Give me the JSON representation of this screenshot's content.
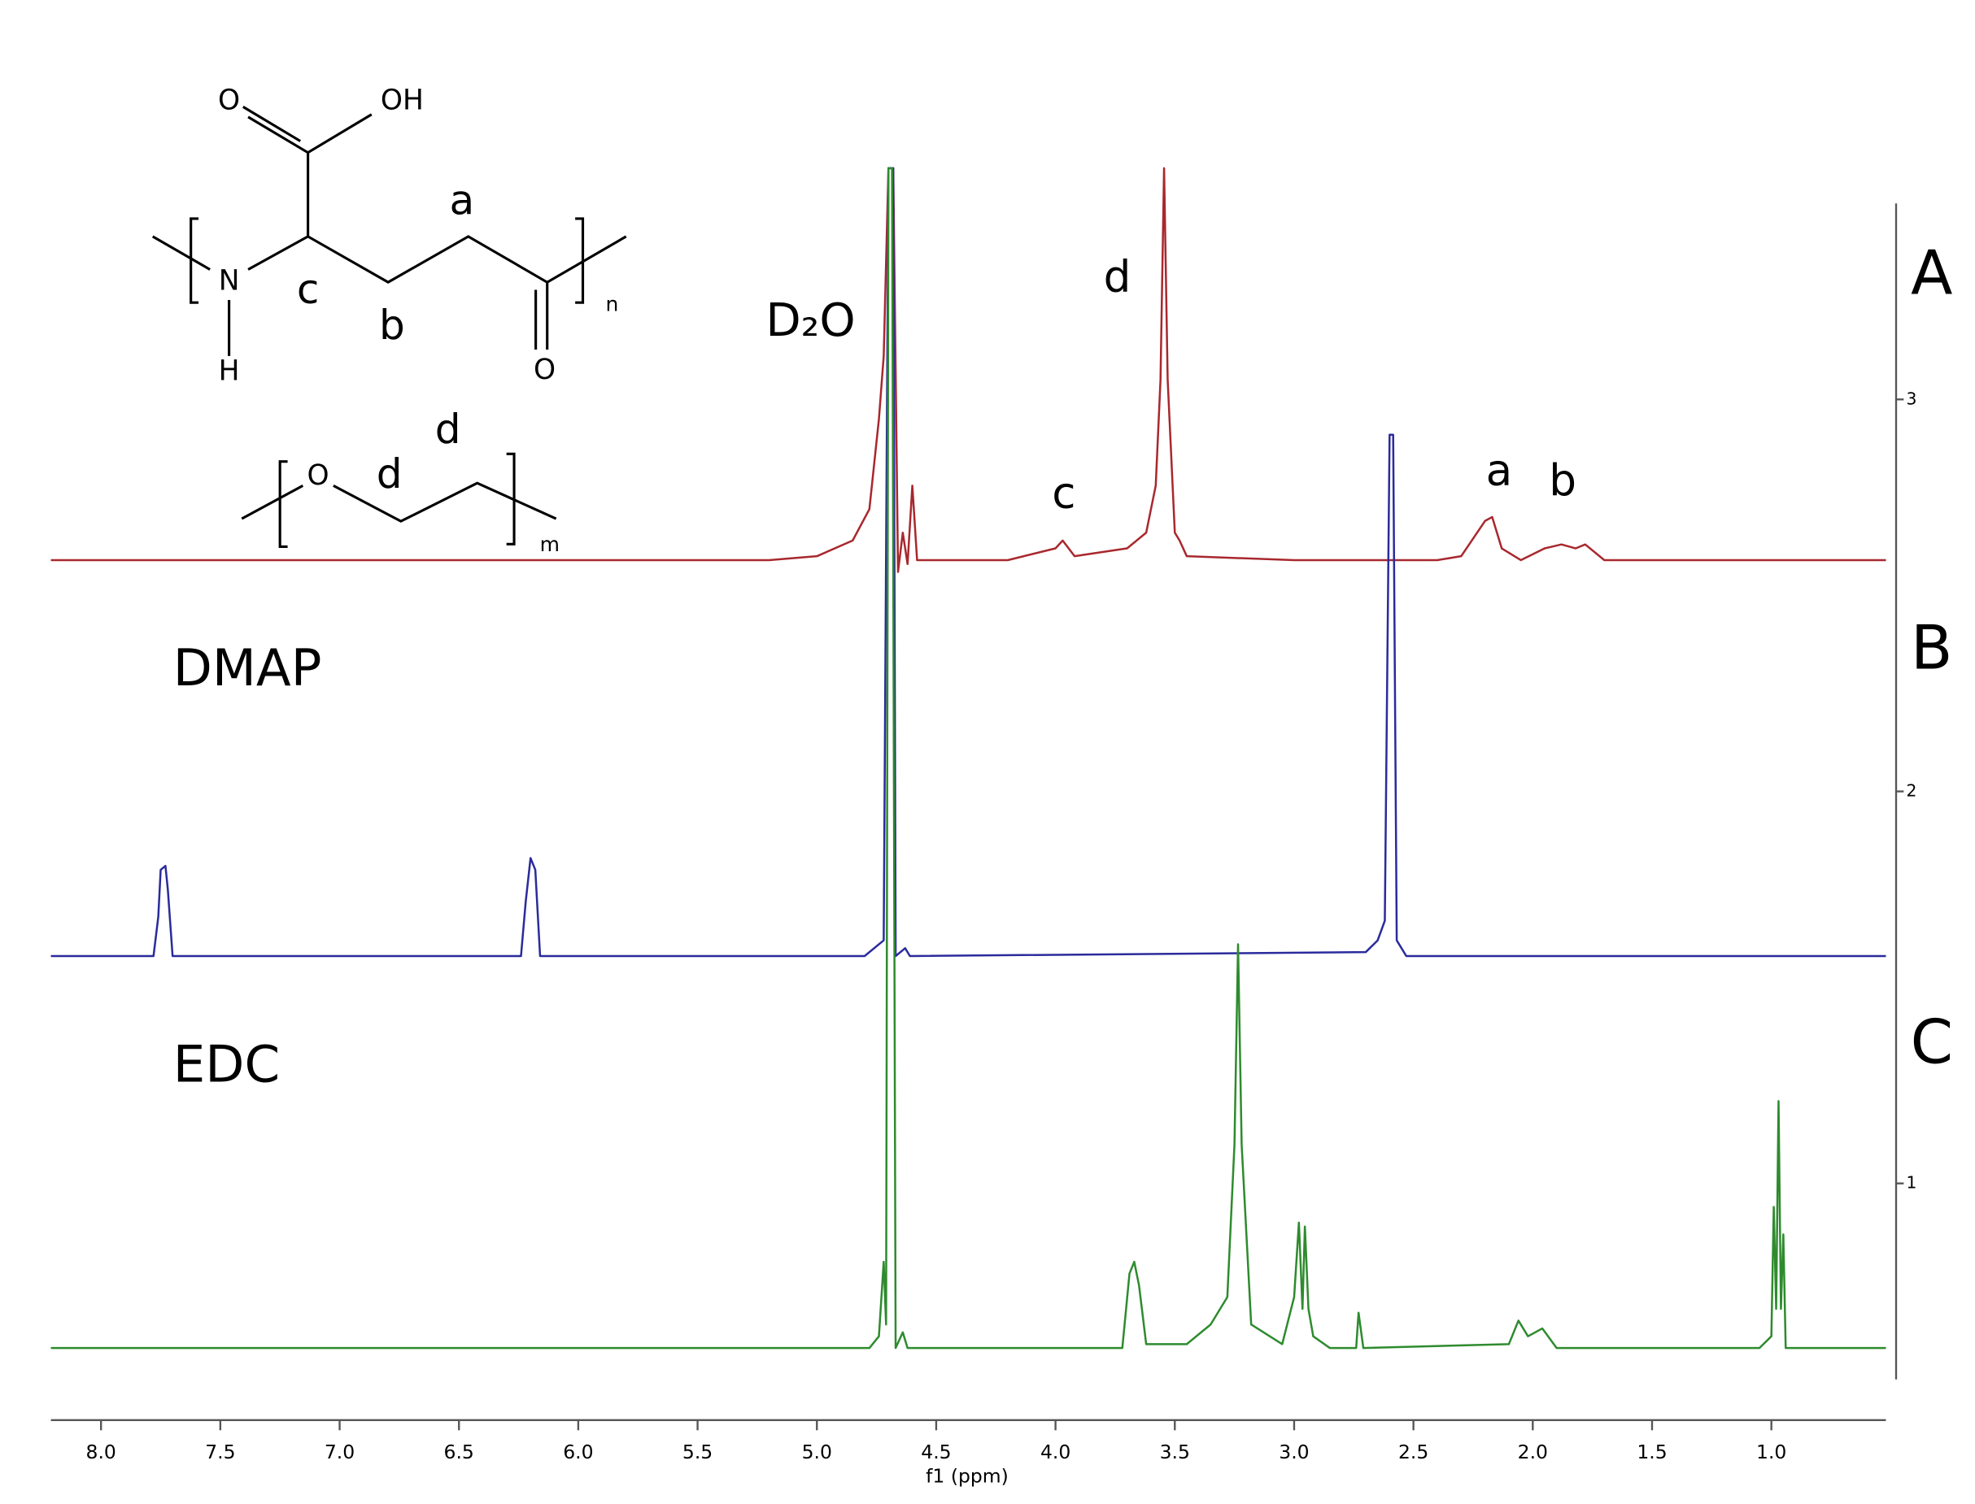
{
  "chart_data": {
    "type": "line",
    "x_label": "f1 (ppm)",
    "xlim": [
      8.21,
      0.52
    ],
    "ylim": [
      0.5,
      3.5
    ],
    "xticks": [
      {
        "value": 8.0,
        "label": "8.0"
      },
      7.5,
      {
        "value": 7.0,
        "label": "7.0"
      },
      6.5,
      {
        "value": 6.0,
        "label": "6.0"
      },
      5.5,
      {
        "value": 5.0,
        "label": "5.0"
      },
      4.5,
      {
        "value": 4.0,
        "label": "4.0"
      },
      3.5,
      {
        "value": 3.0,
        "label": "3.0"
      },
      2.5,
      {
        "value": 2.0,
        "label": "2.0"
      },
      1.5,
      {
        "value": 1.0,
        "label": "1.0"
      }
    ],
    "yticks": [
      1,
      2,
      3
    ],
    "series": [
      {
        "name": "A",
        "color": "#a8282e",
        "x": [
          8.21,
          5.2,
          5.0,
          4.85,
          4.78,
          4.74,
          4.72,
          4.7,
          4.68,
          4.66,
          4.64,
          4.62,
          4.6,
          4.58,
          4.2,
          4.0,
          3.97,
          3.92,
          3.7,
          3.62,
          3.58,
          3.56,
          3.545,
          3.53,
          3.5,
          3.48,
          3.45,
          3.0,
          2.4,
          2.3,
          2.2,
          2.17,
          2.13,
          2.05,
          1.95,
          1.88,
          1.82,
          1.78,
          1.7,
          0.52
        ],
        "values": [
          2.59,
          2.59,
          2.6,
          2.64,
          2.72,
          2.95,
          3.11,
          3.59,
          3.59,
          2.56,
          2.66,
          2.58,
          2.78,
          2.59,
          2.59,
          2.62,
          2.64,
          2.6,
          2.62,
          2.66,
          2.78,
          3.05,
          3.59,
          3.05,
          2.66,
          2.64,
          2.6,
          2.59,
          2.59,
          2.6,
          2.69,
          2.7,
          2.62,
          2.59,
          2.62,
          2.63,
          2.62,
          2.63,
          2.59,
          2.59
        ]
      },
      {
        "name": "B",
        "color": "#2b2b9c",
        "x": [
          8.21,
          7.78,
          7.76,
          7.75,
          7.73,
          7.72,
          7.7,
          6.24,
          6.22,
          6.2,
          6.18,
          6.16,
          4.8,
          4.72,
          4.7,
          4.68,
          4.67,
          4.63,
          4.61,
          2.7,
          2.65,
          2.62,
          2.6,
          2.585,
          2.57,
          2.53,
          0.52
        ],
        "values": [
          1.58,
          1.58,
          1.68,
          1.8,
          1.81,
          1.75,
          1.58,
          1.58,
          1.72,
          1.83,
          1.8,
          1.58,
          1.58,
          1.62,
          3.59,
          3.59,
          1.58,
          1.6,
          1.58,
          1.59,
          1.62,
          1.67,
          2.91,
          2.91,
          1.62,
          1.58,
          1.58
        ]
      },
      {
        "name": "C",
        "color": "#2e8b2e",
        "x": [
          8.21,
          4.78,
          4.74,
          4.72,
          4.71,
          4.7,
          4.685,
          4.67,
          4.64,
          4.62,
          3.72,
          3.69,
          3.67,
          3.65,
          3.62,
          3.45,
          3.35,
          3.28,
          3.25,
          3.235,
          3.22,
          3.18,
          3.05,
          3.0,
          2.98,
          2.965,
          2.955,
          2.94,
          2.92,
          2.85,
          2.74,
          2.73,
          2.71,
          2.1,
          2.06,
          2.02,
          1.96,
          1.9,
          1.05,
          1.0,
          0.99,
          0.98,
          0.97,
          0.96,
          0.95,
          0.94,
          0.52
        ],
        "values": [
          0.58,
          0.58,
          0.61,
          0.8,
          0.64,
          3.59,
          3.59,
          0.58,
          0.62,
          0.58,
          0.58,
          0.77,
          0.8,
          0.74,
          0.59,
          0.59,
          0.64,
          0.71,
          1.1,
          1.61,
          1.1,
          0.64,
          0.59,
          0.71,
          0.9,
          0.68,
          0.89,
          0.68,
          0.61,
          0.58,
          0.58,
          0.67,
          0.58,
          0.59,
          0.65,
          0.61,
          0.63,
          0.58,
          0.58,
          0.61,
          0.94,
          0.68,
          1.21,
          0.68,
          0.87,
          0.58,
          0.58
        ]
      }
    ],
    "annotations": [
      "D₂O",
      "d",
      "c",
      "a",
      "b",
      "DMAP",
      "EDC"
    ],
    "structure_labels": [
      "O",
      "OH",
      "N",
      "H",
      "c",
      "b",
      "a",
      "O",
      "n",
      "O",
      "d",
      "d",
      "m"
    ]
  }
}
